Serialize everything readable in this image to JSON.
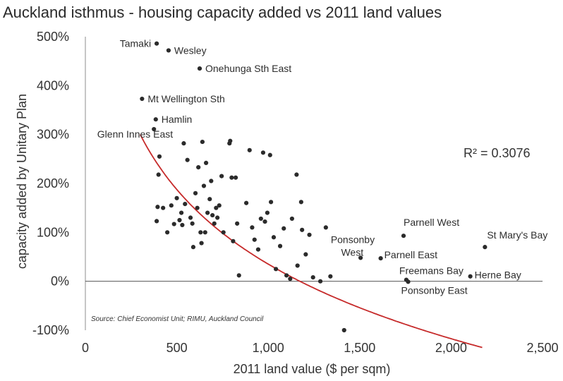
{
  "chart_data": {
    "type": "scatter",
    "title": "Auckland isthmus - housing capacity added vs 2011 land values",
    "xlabel": "2011 land value ($ per sqm)",
    "ylabel": "capacity added by Unitary Plan",
    "xlim": [
      0,
      2500
    ],
    "ylim": [
      -100,
      500
    ],
    "x_ticks": [
      "0",
      "500",
      "1,000",
      "1,500",
      "2,000",
      "2,500"
    ],
    "y_ticks": [
      "-100%",
      "0%",
      "100%",
      "200%",
      "300%",
      "400%",
      "500%"
    ],
    "grid": false,
    "r_squared_label": "R² = 0.3076",
    "source": "Source: Chief Economist Unit; RIMU, Auckland Council",
    "trendline_color": "#c62a2a",
    "point_color": "#2b2b2b",
    "points": [
      {
        "x": 390,
        "y": 486,
        "label": "Tamaki"
      },
      {
        "x": 455,
        "y": 472,
        "label": "Wesley"
      },
      {
        "x": 625,
        "y": 435,
        "label": "Onehunga Sth East"
      },
      {
        "x": 310,
        "y": 373,
        "label": "Mt Wellington Sth"
      },
      {
        "x": 385,
        "y": 331,
        "label": "Hamlin"
      },
      {
        "x": 375,
        "y": 311,
        "label": "Glenn Innes East"
      },
      {
        "x": 1740,
        "y": 93,
        "label": "Parnell West"
      },
      {
        "x": 1505,
        "y": 48,
        "label": "Ponsonby West"
      },
      {
        "x": 1615,
        "y": 47,
        "label": "Parnell East"
      },
      {
        "x": 1755,
        "y": 3,
        "label": "Freemans Bay"
      },
      {
        "x": 1765,
        "y": -1,
        "label": "Ponsonby East"
      },
      {
        "x": 2185,
        "y": 70,
        "label": "St Mary's Bay"
      },
      {
        "x": 2105,
        "y": 10,
        "label": "Herne Bay"
      },
      {
        "x": 405,
        "y": 255
      },
      {
        "x": 400,
        "y": 218
      },
      {
        "x": 395,
        "y": 152
      },
      {
        "x": 390,
        "y": 123
      },
      {
        "x": 425,
        "y": 150
      },
      {
        "x": 448,
        "y": 100
      },
      {
        "x": 470,
        "y": 155
      },
      {
        "x": 485,
        "y": 117
      },
      {
        "x": 500,
        "y": 170
      },
      {
        "x": 515,
        "y": 125
      },
      {
        "x": 525,
        "y": 140
      },
      {
        "x": 530,
        "y": 115
      },
      {
        "x": 538,
        "y": 282
      },
      {
        "x": 545,
        "y": 158
      },
      {
        "x": 558,
        "y": 248
      },
      {
        "x": 575,
        "y": 130
      },
      {
        "x": 585,
        "y": 118
      },
      {
        "x": 590,
        "y": 70
      },
      {
        "x": 602,
        "y": 180
      },
      {
        "x": 612,
        "y": 150
      },
      {
        "x": 618,
        "y": 233
      },
      {
        "x": 630,
        "y": 100
      },
      {
        "x": 635,
        "y": 78
      },
      {
        "x": 640,
        "y": 285
      },
      {
        "x": 648,
        "y": 195
      },
      {
        "x": 655,
        "y": 100
      },
      {
        "x": 660,
        "y": 242
      },
      {
        "x": 668,
        "y": 140
      },
      {
        "x": 680,
        "y": 168
      },
      {
        "x": 688,
        "y": 205
      },
      {
        "x": 695,
        "y": 135
      },
      {
        "x": 705,
        "y": 118
      },
      {
        "x": 715,
        "y": 150
      },
      {
        "x": 722,
        "y": 130
      },
      {
        "x": 732,
        "y": 155
      },
      {
        "x": 745,
        "y": 215
      },
      {
        "x": 755,
        "y": 100
      },
      {
        "x": 788,
        "y": 282
      },
      {
        "x": 792,
        "y": 287
      },
      {
        "x": 800,
        "y": 212
      },
      {
        "x": 808,
        "y": 82
      },
      {
        "x": 822,
        "y": 212
      },
      {
        "x": 830,
        "y": 118
      },
      {
        "x": 840,
        "y": 12
      },
      {
        "x": 880,
        "y": 160
      },
      {
        "x": 898,
        "y": 268
      },
      {
        "x": 912,
        "y": 110
      },
      {
        "x": 925,
        "y": 85
      },
      {
        "x": 945,
        "y": 65
      },
      {
        "x": 960,
        "y": 128
      },
      {
        "x": 972,
        "y": 263
      },
      {
        "x": 982,
        "y": 122
      },
      {
        "x": 995,
        "y": 140
      },
      {
        "x": 1010,
        "y": 258
      },
      {
        "x": 1015,
        "y": 162
      },
      {
        "x": 1030,
        "y": 90
      },
      {
        "x": 1042,
        "y": 25
      },
      {
        "x": 1065,
        "y": 72
      },
      {
        "x": 1085,
        "y": 108
      },
      {
        "x": 1100,
        "y": 12
      },
      {
        "x": 1120,
        "y": 5
      },
      {
        "x": 1130,
        "y": 128
      },
      {
        "x": 1155,
        "y": 218
      },
      {
        "x": 1160,
        "y": 32
      },
      {
        "x": 1180,
        "y": 162
      },
      {
        "x": 1185,
        "y": 105
      },
      {
        "x": 1205,
        "y": 55
      },
      {
        "x": 1225,
        "y": 95
      },
      {
        "x": 1245,
        "y": 8
      },
      {
        "x": 1285,
        "y": 0
      },
      {
        "x": 1315,
        "y": 110
      },
      {
        "x": 1340,
        "y": 10
      },
      {
        "x": 1415,
        "y": -100
      }
    ]
  }
}
